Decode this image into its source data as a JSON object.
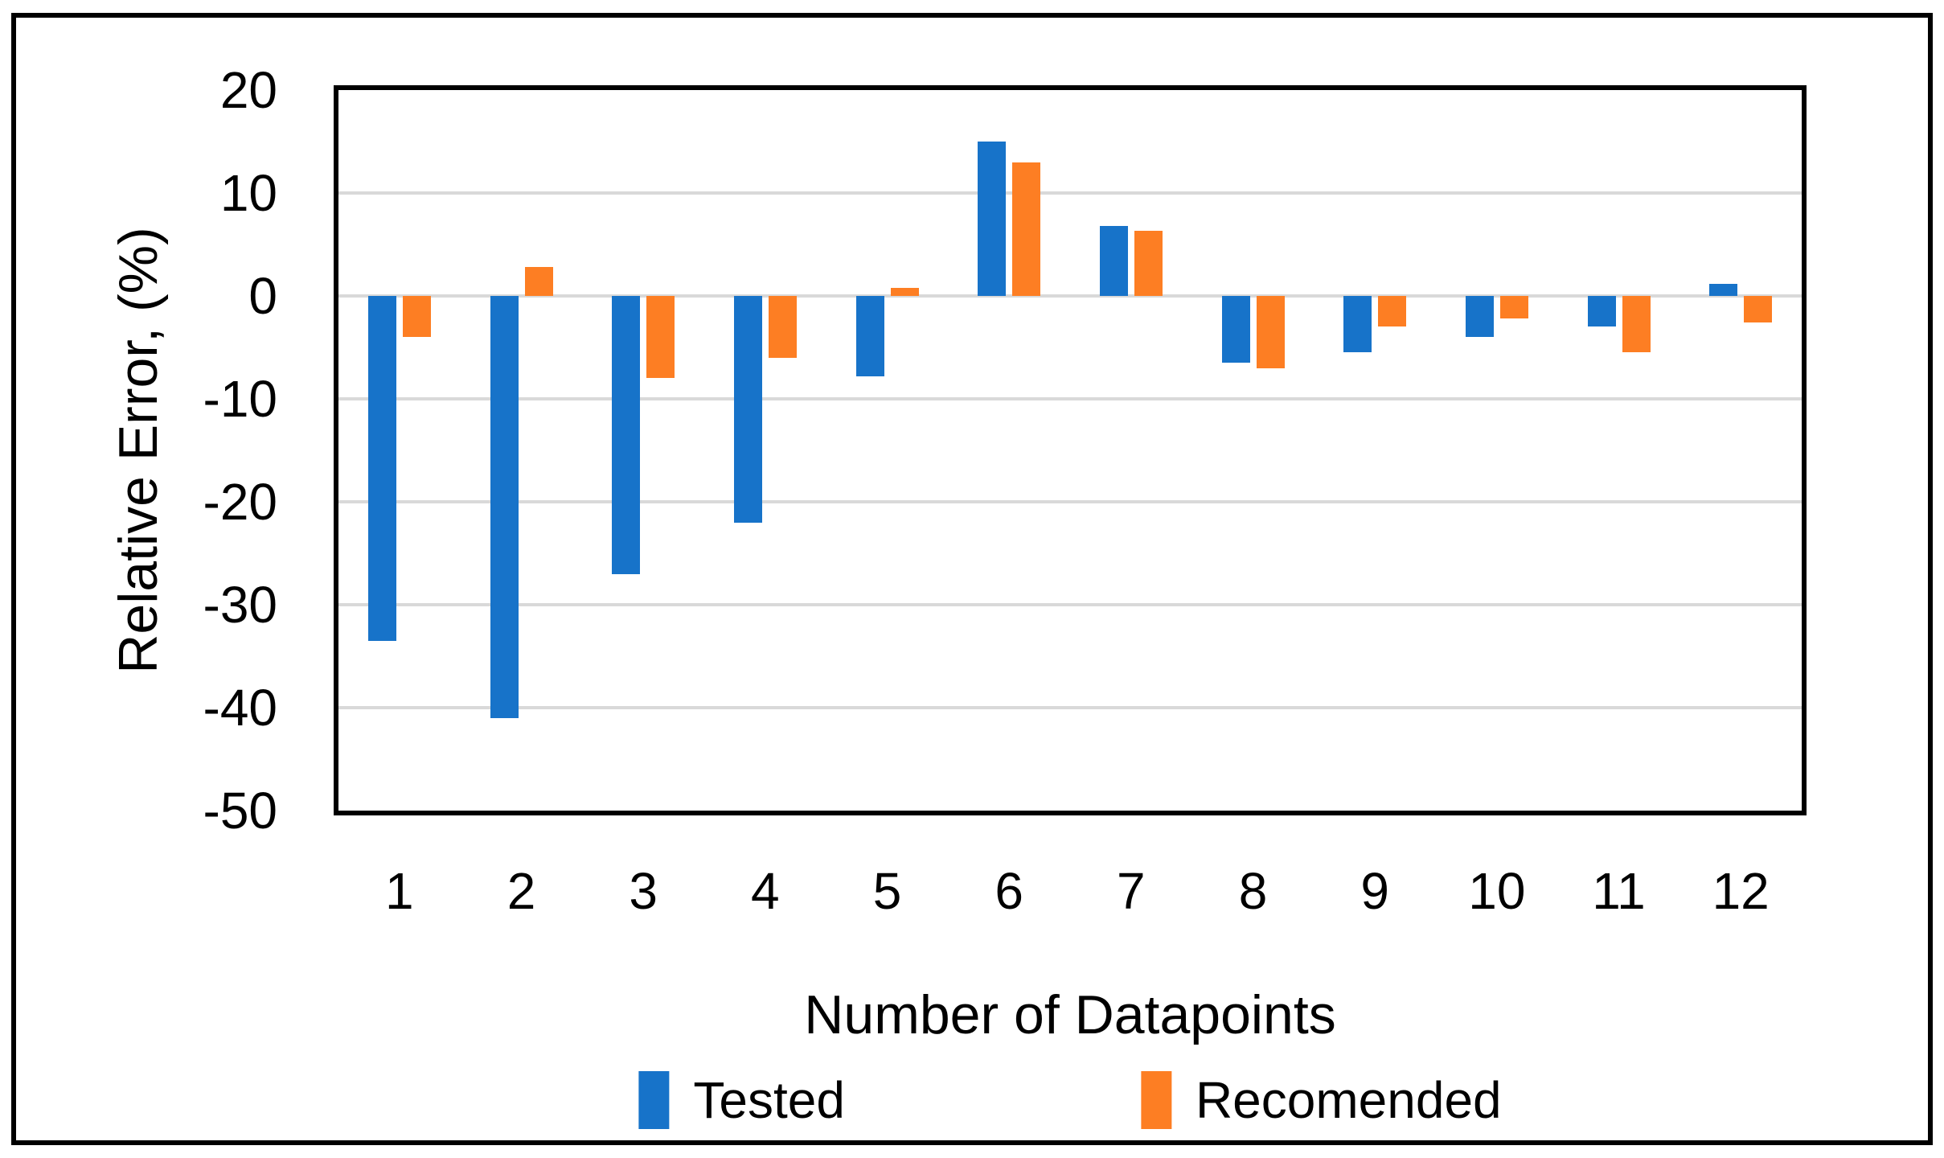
{
  "chart_data": {
    "type": "bar",
    "title": "",
    "xlabel": "Number of Datapoints",
    "ylabel": "Relative Error, (%)",
    "categories": [
      "1",
      "2",
      "3",
      "4",
      "5",
      "6",
      "7",
      "8",
      "9",
      "10",
      "11",
      "12"
    ],
    "series": [
      {
        "name": "Tested",
        "color": "#1773C9",
        "values": [
          -33.5,
          -41,
          -27,
          -22,
          -7.8,
          15,
          6.8,
          -6.5,
          -5.5,
          -4,
          -3,
          1.2
        ]
      },
      {
        "name": "Recomended",
        "color": "#FD7E23",
        "values": [
          -4,
          2.8,
          -8,
          -6,
          0.8,
          13,
          6.3,
          -7,
          -3,
          -2.2,
          -5.5,
          -2.6
        ]
      }
    ],
    "ylim": [
      -50,
      20
    ],
    "yticks": [
      20,
      10,
      0,
      -10,
      -20,
      -30,
      -40,
      -50
    ],
    "grid": true,
    "gridline_color": "#D9D9D9",
    "plot_border_color": "#000000",
    "legend_position": "bottom"
  }
}
